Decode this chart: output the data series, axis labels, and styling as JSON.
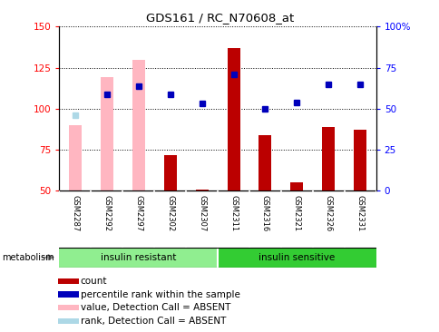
{
  "title": "GDS161 / RC_N70608_at",
  "samples": [
    "GSM2287",
    "GSM2292",
    "GSM2297",
    "GSM2302",
    "GSM2307",
    "GSM2311",
    "GSM2316",
    "GSM2321",
    "GSM2326",
    "GSM2331"
  ],
  "bar_values": [
    null,
    null,
    null,
    72,
    51,
    137,
    84,
    55,
    89,
    87
  ],
  "bar_absent_values": [
    90,
    119,
    130,
    null,
    null,
    null,
    null,
    null,
    null,
    null
  ],
  "dot_values": [
    null,
    109,
    114,
    109,
    103,
    121,
    100,
    104,
    115,
    115
  ],
  "dot_absent_values": [
    96,
    null,
    null,
    null,
    null,
    null,
    null,
    null,
    null,
    null
  ],
  "ylim": [
    50,
    150
  ],
  "y2lim": [
    0,
    100
  ],
  "yticks": [
    50,
    75,
    100,
    125,
    150
  ],
  "y2ticks": [
    0,
    25,
    50,
    75,
    100
  ],
  "y2ticklabels": [
    "0",
    "25",
    "50",
    "75",
    "100%"
  ],
  "bar_color": "#BB0000",
  "bar_absent_color": "#FFB6C1",
  "dot_color": "#0000BB",
  "dot_absent_color": "#ADD8E6",
  "group_colors": [
    "#90EE90",
    "#33CC33"
  ],
  "group_labels": [
    "insulin resistant",
    "insulin sensitive"
  ],
  "group_ranges": [
    [
      0,
      4
    ],
    [
      5,
      9
    ]
  ],
  "legend_items": [
    {
      "label": "count",
      "color": "#BB0000"
    },
    {
      "label": "percentile rank within the sample",
      "color": "#0000BB"
    },
    {
      "label": "value, Detection Call = ABSENT",
      "color": "#FFB6C1"
    },
    {
      "label": "rank, Detection Call = ABSENT",
      "color": "#ADD8E6"
    }
  ],
  "metabolism_label": "metabolism",
  "bar_width": 0.4
}
